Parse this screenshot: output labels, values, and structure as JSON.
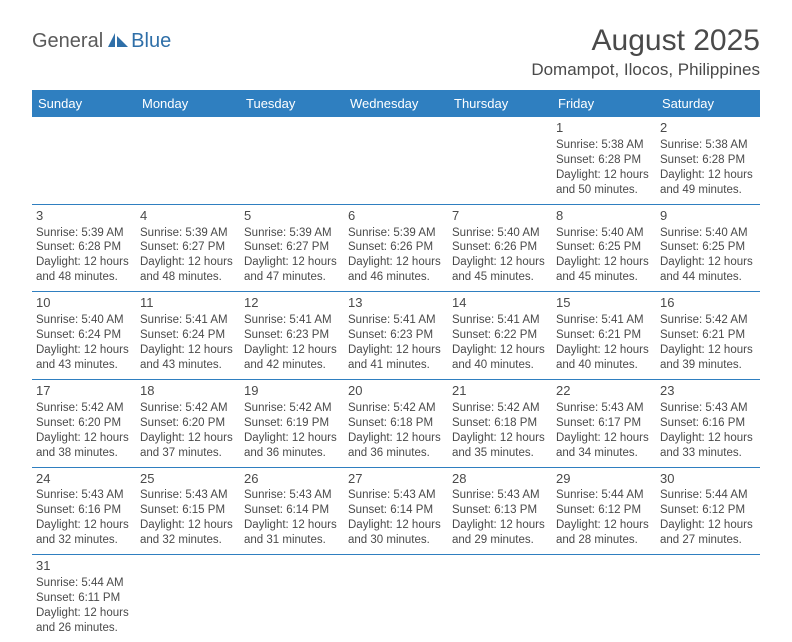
{
  "logo": {
    "text1": "General",
    "text2": "Blue"
  },
  "title": "August 2025",
  "location": "Domampot, Ilocos, Philippines",
  "colors": {
    "header_bg": "#2f7fc0",
    "header_fg": "#ffffff",
    "border": "#2f7fc0",
    "text": "#4a4a4a",
    "logo_gray": "#5a5a5a",
    "logo_blue": "#2f6fa8",
    "bg": "#ffffff"
  },
  "day_headers": [
    "Sunday",
    "Monday",
    "Tuesday",
    "Wednesday",
    "Thursday",
    "Friday",
    "Saturday"
  ],
  "weeks": [
    [
      null,
      null,
      null,
      null,
      null,
      {
        "d": "1",
        "sr": "Sunrise: 5:38 AM",
        "ss": "Sunset: 6:28 PM",
        "dl1": "Daylight: 12 hours",
        "dl2": "and 50 minutes."
      },
      {
        "d": "2",
        "sr": "Sunrise: 5:38 AM",
        "ss": "Sunset: 6:28 PM",
        "dl1": "Daylight: 12 hours",
        "dl2": "and 49 minutes."
      }
    ],
    [
      {
        "d": "3",
        "sr": "Sunrise: 5:39 AM",
        "ss": "Sunset: 6:28 PM",
        "dl1": "Daylight: 12 hours",
        "dl2": "and 48 minutes."
      },
      {
        "d": "4",
        "sr": "Sunrise: 5:39 AM",
        "ss": "Sunset: 6:27 PM",
        "dl1": "Daylight: 12 hours",
        "dl2": "and 48 minutes."
      },
      {
        "d": "5",
        "sr": "Sunrise: 5:39 AM",
        "ss": "Sunset: 6:27 PM",
        "dl1": "Daylight: 12 hours",
        "dl2": "and 47 minutes."
      },
      {
        "d": "6",
        "sr": "Sunrise: 5:39 AM",
        "ss": "Sunset: 6:26 PM",
        "dl1": "Daylight: 12 hours",
        "dl2": "and 46 minutes."
      },
      {
        "d": "7",
        "sr": "Sunrise: 5:40 AM",
        "ss": "Sunset: 6:26 PM",
        "dl1": "Daylight: 12 hours",
        "dl2": "and 45 minutes."
      },
      {
        "d": "8",
        "sr": "Sunrise: 5:40 AM",
        "ss": "Sunset: 6:25 PM",
        "dl1": "Daylight: 12 hours",
        "dl2": "and 45 minutes."
      },
      {
        "d": "9",
        "sr": "Sunrise: 5:40 AM",
        "ss": "Sunset: 6:25 PM",
        "dl1": "Daylight: 12 hours",
        "dl2": "and 44 minutes."
      }
    ],
    [
      {
        "d": "10",
        "sr": "Sunrise: 5:40 AM",
        "ss": "Sunset: 6:24 PM",
        "dl1": "Daylight: 12 hours",
        "dl2": "and 43 minutes."
      },
      {
        "d": "11",
        "sr": "Sunrise: 5:41 AM",
        "ss": "Sunset: 6:24 PM",
        "dl1": "Daylight: 12 hours",
        "dl2": "and 43 minutes."
      },
      {
        "d": "12",
        "sr": "Sunrise: 5:41 AM",
        "ss": "Sunset: 6:23 PM",
        "dl1": "Daylight: 12 hours",
        "dl2": "and 42 minutes."
      },
      {
        "d": "13",
        "sr": "Sunrise: 5:41 AM",
        "ss": "Sunset: 6:23 PM",
        "dl1": "Daylight: 12 hours",
        "dl2": "and 41 minutes."
      },
      {
        "d": "14",
        "sr": "Sunrise: 5:41 AM",
        "ss": "Sunset: 6:22 PM",
        "dl1": "Daylight: 12 hours",
        "dl2": "and 40 minutes."
      },
      {
        "d": "15",
        "sr": "Sunrise: 5:41 AM",
        "ss": "Sunset: 6:21 PM",
        "dl1": "Daylight: 12 hours",
        "dl2": "and 40 minutes."
      },
      {
        "d": "16",
        "sr": "Sunrise: 5:42 AM",
        "ss": "Sunset: 6:21 PM",
        "dl1": "Daylight: 12 hours",
        "dl2": "and 39 minutes."
      }
    ],
    [
      {
        "d": "17",
        "sr": "Sunrise: 5:42 AM",
        "ss": "Sunset: 6:20 PM",
        "dl1": "Daylight: 12 hours",
        "dl2": "and 38 minutes."
      },
      {
        "d": "18",
        "sr": "Sunrise: 5:42 AM",
        "ss": "Sunset: 6:20 PM",
        "dl1": "Daylight: 12 hours",
        "dl2": "and 37 minutes."
      },
      {
        "d": "19",
        "sr": "Sunrise: 5:42 AM",
        "ss": "Sunset: 6:19 PM",
        "dl1": "Daylight: 12 hours",
        "dl2": "and 36 minutes."
      },
      {
        "d": "20",
        "sr": "Sunrise: 5:42 AM",
        "ss": "Sunset: 6:18 PM",
        "dl1": "Daylight: 12 hours",
        "dl2": "and 36 minutes."
      },
      {
        "d": "21",
        "sr": "Sunrise: 5:42 AM",
        "ss": "Sunset: 6:18 PM",
        "dl1": "Daylight: 12 hours",
        "dl2": "and 35 minutes."
      },
      {
        "d": "22",
        "sr": "Sunrise: 5:43 AM",
        "ss": "Sunset: 6:17 PM",
        "dl1": "Daylight: 12 hours",
        "dl2": "and 34 minutes."
      },
      {
        "d": "23",
        "sr": "Sunrise: 5:43 AM",
        "ss": "Sunset: 6:16 PM",
        "dl1": "Daylight: 12 hours",
        "dl2": "and 33 minutes."
      }
    ],
    [
      {
        "d": "24",
        "sr": "Sunrise: 5:43 AM",
        "ss": "Sunset: 6:16 PM",
        "dl1": "Daylight: 12 hours",
        "dl2": "and 32 minutes."
      },
      {
        "d": "25",
        "sr": "Sunrise: 5:43 AM",
        "ss": "Sunset: 6:15 PM",
        "dl1": "Daylight: 12 hours",
        "dl2": "and 32 minutes."
      },
      {
        "d": "26",
        "sr": "Sunrise: 5:43 AM",
        "ss": "Sunset: 6:14 PM",
        "dl1": "Daylight: 12 hours",
        "dl2": "and 31 minutes."
      },
      {
        "d": "27",
        "sr": "Sunrise: 5:43 AM",
        "ss": "Sunset: 6:14 PM",
        "dl1": "Daylight: 12 hours",
        "dl2": "and 30 minutes."
      },
      {
        "d": "28",
        "sr": "Sunrise: 5:43 AM",
        "ss": "Sunset: 6:13 PM",
        "dl1": "Daylight: 12 hours",
        "dl2": "and 29 minutes."
      },
      {
        "d": "29",
        "sr": "Sunrise: 5:44 AM",
        "ss": "Sunset: 6:12 PM",
        "dl1": "Daylight: 12 hours",
        "dl2": "and 28 minutes."
      },
      {
        "d": "30",
        "sr": "Sunrise: 5:44 AM",
        "ss": "Sunset: 6:12 PM",
        "dl1": "Daylight: 12 hours",
        "dl2": "and 27 minutes."
      }
    ],
    [
      {
        "d": "31",
        "sr": "Sunrise: 5:44 AM",
        "ss": "Sunset: 6:11 PM",
        "dl1": "Daylight: 12 hours",
        "dl2": "and 26 minutes."
      },
      null,
      null,
      null,
      null,
      null,
      null
    ]
  ]
}
